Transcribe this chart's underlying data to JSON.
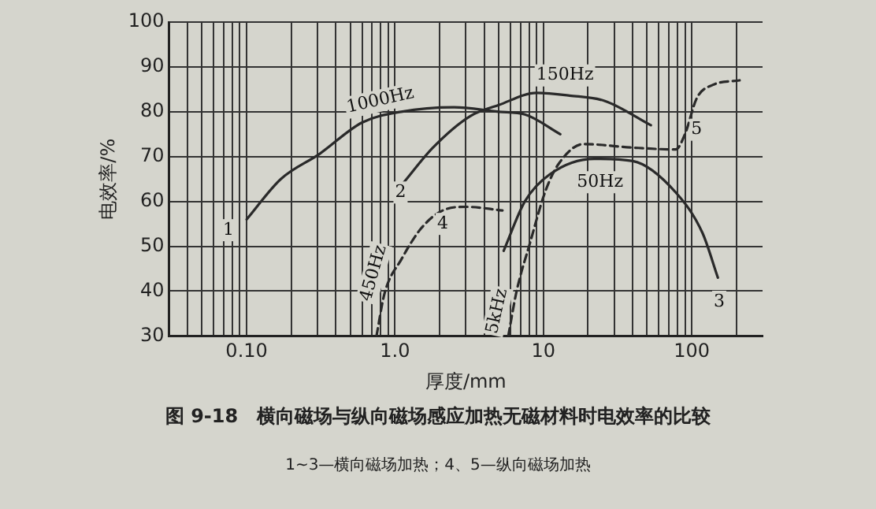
{
  "chart_data": {
    "type": "line",
    "title": "图 9-18　横向磁场与纵向磁场感应加热无磁材料时电效率的比较",
    "subtitle": "1~3—横向磁场加热；4、5—纵向磁场加热",
    "xlabel": "厚度/mm",
    "ylabel": "电效率/%",
    "log": "x",
    "grid": true,
    "legend": false,
    "marker": "none",
    "xlim": [
      0.03,
      300
    ],
    "ylim": [
      30,
      100
    ],
    "xticks": [
      {
        "value": 0.04,
        "label": null
      },
      {
        "value": 0.05,
        "label": null
      },
      {
        "value": 0.06,
        "label": null
      },
      {
        "value": 0.07,
        "label": null
      },
      {
        "value": 0.08,
        "label": null
      },
      {
        "value": 0.09,
        "label": null
      },
      {
        "value": 0.1,
        "label": "0.10"
      },
      {
        "value": 0.2,
        "label": null
      },
      {
        "value": 0.3,
        "label": null
      },
      {
        "value": 0.4,
        "label": null
      },
      {
        "value": 0.5,
        "label": null
      },
      {
        "value": 0.6,
        "label": null
      },
      {
        "value": 0.7,
        "label": null
      },
      {
        "value": 0.8,
        "label": null
      },
      {
        "value": 0.9,
        "label": null
      },
      {
        "value": 1,
        "label": "1.0"
      },
      {
        "value": 2,
        "label": null
      },
      {
        "value": 3,
        "label": null
      },
      {
        "value": 4,
        "label": null
      },
      {
        "value": 5,
        "label": null
      },
      {
        "value": 6,
        "label": null
      },
      {
        "value": 7,
        "label": null
      },
      {
        "value": 8,
        "label": null
      },
      {
        "value": 9,
        "label": null
      },
      10,
      {
        "value": 20,
        "label": null
      },
      {
        "value": 30,
        "label": null
      },
      {
        "value": 40,
        "label": null
      },
      {
        "value": 50,
        "label": null
      },
      {
        "value": 60,
        "label": null
      },
      {
        "value": 70,
        "label": null
      },
      {
        "value": 80,
        "label": null
      },
      {
        "value": 90,
        "label": null
      },
      100,
      {
        "value": 200,
        "label": null
      }
    ],
    "yticks": [
      30,
      40,
      50,
      60,
      70,
      80,
      90,
      100
    ],
    "series": [
      {
        "color": "#2a2a2a",
        "line_style": "solid",
        "x": [
          0.1,
          0.17,
          0.31,
          0.6,
          1.1,
          2.5,
          5,
          7.5,
          13
        ],
        "values": [
          56,
          65,
          70.6,
          77.6,
          80,
          81,
          80,
          79.4,
          75
        ]
      },
      {
        "color": "#2a2a2a",
        "line_style": "solid",
        "x": [
          1.13,
          1.8,
          3.2,
          5,
          9,
          15,
          26,
          53
        ],
        "values": [
          64,
          72,
          79,
          81.5,
          84.2,
          83.6,
          82.4,
          77
        ]
      },
      {
        "color": "#2a2a2a",
        "line_style": "solid",
        "x": [
          5.4,
          7.5,
          11,
          22,
          40,
          78,
          118,
          150
        ],
        "values": [
          49,
          60,
          66,
          69.5,
          69,
          62,
          53,
          43
        ]
      },
      {
        "color": "#2a2a2a",
        "line_style": "dashed",
        "x": [
          0.75,
          0.85,
          1.1,
          1.5,
          2.1,
          3,
          5.3
        ],
        "values": [
          30,
          39.5,
          47,
          54,
          58,
          58.8,
          58
        ]
      },
      {
        "color": "#2a2a2a",
        "line_style": "dashed",
        "x": [
          5.8,
          6.6,
          8.1,
          10.4,
          12.8,
          18.7,
          40,
          78,
          90,
          108,
          139,
          210
        ],
        "values": [
          30,
          40,
          50.6,
          62.6,
          68.6,
          72.8,
          72,
          71.6,
          75,
          83,
          86,
          87
        ]
      }
    ],
    "annotations": [
      "1000Hz",
      "150Hz",
      "50Hz",
      "450Hz",
      "5kHz",
      "1",
      "2",
      "3",
      "4",
      "5"
    ]
  }
}
